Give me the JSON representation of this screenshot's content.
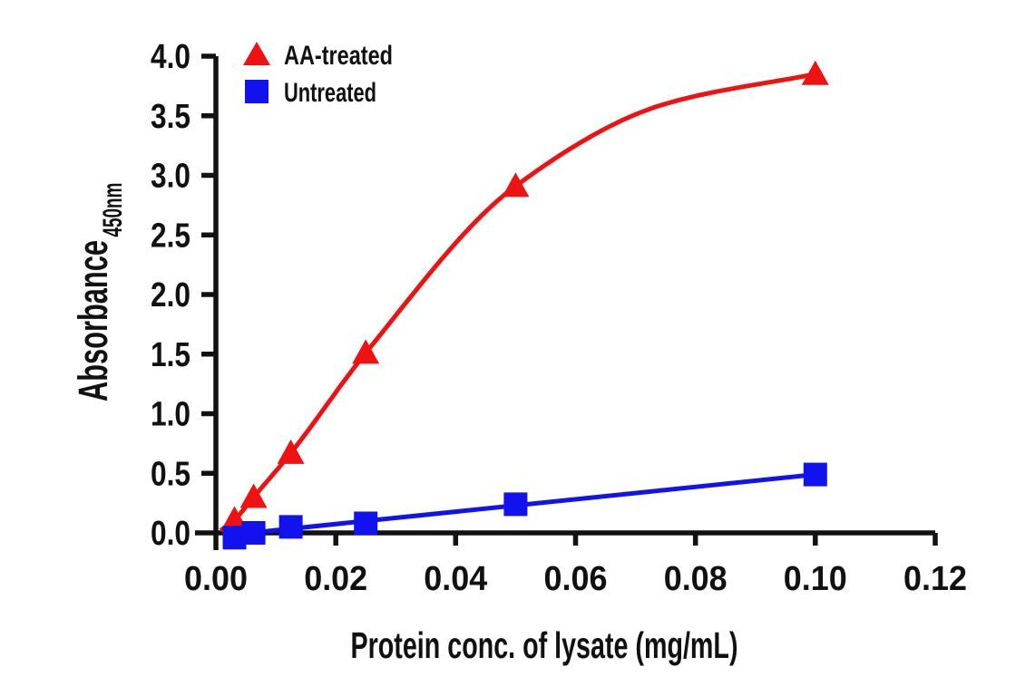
{
  "figure": {
    "background": "#ffffff",
    "axis_color": "#111111"
  },
  "chart_data": {
    "type": "scatter",
    "title": "",
    "xlabel": "Protein conc. of lysate (mg/mL)",
    "ylabel_main": "Absorbance",
    "ylabel_sub": "450nm",
    "xlim": [
      0,
      0.12
    ],
    "ylim": [
      0,
      4.0
    ],
    "grid": false,
    "legend_position": "top-left-inside",
    "x_ticks": {
      "values": [
        0,
        0.02,
        0.04,
        0.06,
        0.08,
        0.1,
        0.12
      ],
      "labels": [
        "0.00",
        "0.02",
        "0.04",
        "0.06",
        "0.08",
        "0.10",
        "0.12"
      ]
    },
    "y_ticks": {
      "values": [
        0,
        0.5,
        1.0,
        1.5,
        2.0,
        2.5,
        3.0,
        3.5,
        4.0
      ],
      "labels": [
        "0.0",
        "0.5",
        "1.0",
        "1.5",
        "2.0",
        "2.5",
        "3.0",
        "3.5",
        "4.0"
      ]
    },
    "series": [
      {
        "name": "AA-treated",
        "marker": "triangle",
        "color": "#EE1212",
        "x": [
          0.0031,
          0.0063,
          0.0125,
          0.025,
          0.05,
          0.1
        ],
        "y": [
          0.11,
          0.3,
          0.67,
          1.51,
          2.91,
          3.85
        ],
        "fit_line": {
          "x": [
            0.0008,
            0.0031,
            0.0063,
            0.0125,
            0.025,
            0.05,
            0.075,
            0.1
          ],
          "y": [
            0.02,
            0.11,
            0.3,
            0.67,
            1.51,
            2.91,
            3.6,
            3.85
          ]
        }
      },
      {
        "name": "Untreated",
        "marker": "square",
        "color": "#1212EE",
        "x": [
          0.0031,
          0.0063,
          0.0125,
          0.025,
          0.05,
          0.1
        ],
        "y": [
          -0.04,
          0.0,
          0.05,
          0.08,
          0.24,
          0.49
        ],
        "fit_line": {
          "x": [
            0.002,
            0.1
          ],
          "y": [
            -0.02,
            0.49
          ]
        }
      }
    ]
  }
}
